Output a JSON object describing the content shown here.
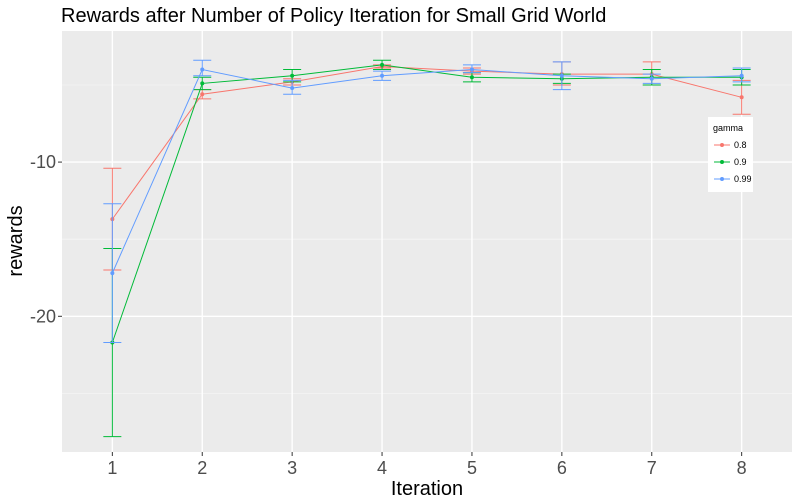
{
  "chart_data": {
    "type": "line",
    "title": "Rewards after Number of Policy Iteration for Small Grid World",
    "xlabel": "Iteration",
    "ylabel": "rewards",
    "x": [
      1,
      2,
      3,
      4,
      5,
      6,
      7,
      8
    ],
    "xticks": [
      "1",
      "2",
      "3",
      "4",
      "5",
      "6",
      "7",
      "8"
    ],
    "yticks": [
      -10,
      -20
    ],
    "ytick_labels": [
      "-10",
      "-20"
    ],
    "ylim": [
      -28.8,
      -1.5
    ],
    "grid": true,
    "legend": {
      "title": "gamma",
      "position": "right"
    },
    "series": [
      {
        "name": "0.8",
        "color": "#F8766D",
        "values": [
          -13.7,
          -5.6,
          -4.8,
          -3.8,
          -4.1,
          -4.3,
          -4.3,
          -5.8
        ],
        "error_low": [
          -17.0,
          -5.9,
          -5.0,
          -3.9,
          -4.3,
          -5.0,
          -5.0,
          -6.9
        ],
        "error_high": [
          -10.4,
          -5.3,
          -4.6,
          -3.7,
          -3.9,
          -3.5,
          -3.5,
          -4.7
        ]
      },
      {
        "name": "0.9",
        "color": "#00BA38",
        "values": [
          -21.7,
          -4.9,
          -4.4,
          -3.7,
          -4.5,
          -4.6,
          -4.5,
          -4.5
        ],
        "error_low": [
          -27.8,
          -5.3,
          -4.8,
          -4.0,
          -4.8,
          -4.9,
          -5.0,
          -5.0
        ],
        "error_high": [
          -15.6,
          -4.5,
          -4.0,
          -3.4,
          -4.2,
          -4.3,
          -4.0,
          -4.0
        ]
      },
      {
        "name": "0.99",
        "color": "#619CFF",
        "values": [
          -17.2,
          -4.0,
          -5.2,
          -4.4,
          -4.0,
          -4.4,
          -4.6,
          -4.4
        ],
        "error_low": [
          -21.7,
          -4.4,
          -5.6,
          -4.7,
          -4.2,
          -5.3,
          -4.9,
          -4.8
        ],
        "error_high": [
          -12.7,
          -3.4,
          -4.7,
          -4.1,
          -3.7,
          -3.5,
          -4.3,
          -3.9
        ]
      }
    ]
  }
}
